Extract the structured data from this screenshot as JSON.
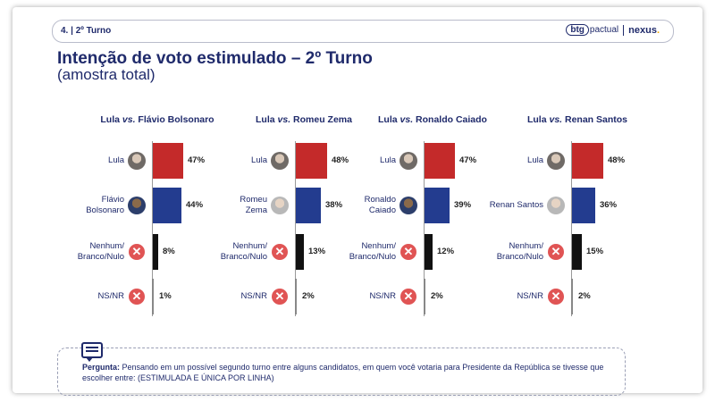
{
  "header": {
    "section_label": "4. | 2º Turno",
    "logo_btg": "btg",
    "logo_pactual": "pactual",
    "logo_nexus": "nexus",
    "logo_dot": "."
  },
  "title": "Intenção de voto estimulado – 2º Turno",
  "subtitle": "(amostra total)",
  "colors": {
    "lula": "#c42a2a",
    "opponent": "#233c8f",
    "nenhum": "#111111",
    "nsnr": "#888888",
    "x_icon": "#e05454"
  },
  "chart_data": [
    {
      "type": "bar",
      "title_main": "Lula",
      "title_vs": "vs.",
      "title_opponent": "Flávio Bolsonaro",
      "categories": [
        "Lula",
        "Flávio Bolsonaro",
        "Nenhum/ Branco/Nulo",
        "NS/NR"
      ],
      "values": [
        47,
        44,
        8,
        1
      ],
      "value_labels": [
        "47%",
        "44%",
        "8%",
        "1%"
      ]
    },
    {
      "type": "bar",
      "title_main": "Lula",
      "title_vs": "vs.",
      "title_opponent": "Romeu Zema",
      "categories": [
        "Lula",
        "Romeu Zema",
        "Nenhum/ Branco/Nulo",
        "NS/NR"
      ],
      "values": [
        48,
        38,
        13,
        2
      ],
      "value_labels": [
        "48%",
        "38%",
        "13%",
        "2%"
      ]
    },
    {
      "type": "bar",
      "title_main": "Lula",
      "title_vs": "vs.",
      "title_opponent": "Ronaldo Caiado",
      "categories": [
        "Lula",
        "Ronaldo Caiado",
        "Nenhum/ Branco/Nulo",
        "NS/NR"
      ],
      "values": [
        47,
        39,
        12,
        2
      ],
      "value_labels": [
        "47%",
        "39%",
        "12%",
        "2%"
      ]
    },
    {
      "type": "bar",
      "title_main": "Lula",
      "title_vs": "vs.",
      "title_opponent": "Renan Santos",
      "categories": [
        "Lula",
        "Renan Santos",
        "Nenhum/ Branco/Nulo",
        "NS/NR"
      ],
      "values": [
        48,
        36,
        15,
        2
      ],
      "value_labels": [
        "48%",
        "36%",
        "15%",
        "2%"
      ]
    }
  ],
  "panels": [
    {
      "labels": [
        "Lula",
        "Flávio\nBolsonaro",
        "Nenhum/\nBranco/Nulo",
        "NS/NR"
      ]
    },
    {
      "labels": [
        "Lula",
        "Romeu\nZema",
        "Nenhum/\nBranco/Nulo",
        "NS/NR"
      ]
    },
    {
      "labels": [
        "Lula",
        "Ronaldo\nCaiado",
        "Nenhum/\nBranco/Nulo",
        "NS/NR"
      ]
    },
    {
      "labels": [
        "Lula",
        "Renan Santos",
        "Nenhum/\nBranco/Nulo",
        "NS/NR"
      ]
    }
  ],
  "x_icon_glyph": "✕",
  "question": {
    "label": "Pergunta:",
    "text": " Pensando em um possível segundo turno entre alguns candidatos, em quem você votaria para Presidente da República se tivesse que escolher entre: (ESTIMULADA E ÚNICA POR LINHA)"
  }
}
